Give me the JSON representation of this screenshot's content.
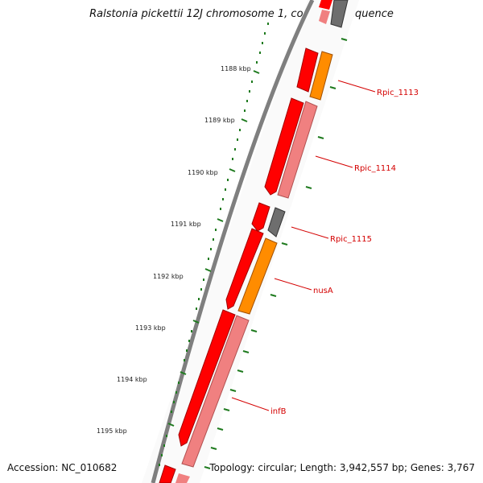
{
  "title": "Ralstonia pickettii 12J chromosome 1, complete sequence",
  "footer": {
    "accession": "Accession: NC_010682",
    "topology": "Topology: circular; Length: 3,942,557 bp; Genes: 3,767"
  },
  "ticks": [
    "1188 kbp",
    "1189 kbp",
    "1190 kbp",
    "1191 kbp",
    "1192 kbp",
    "1193 kbp",
    "1194 kbp",
    "1195 kbp"
  ],
  "genes": [
    "Rpic_1113",
    "Rpic_1114",
    "Rpic_1115",
    "nusA",
    "infB"
  ],
  "colors": {
    "backbone": "#808080",
    "gene_red": "#ff0000",
    "gene_pink": "#f08080",
    "gene_orange": "#ff8c00",
    "gene_gray": "#6e6e6e",
    "tick_green": "#1e7a1e",
    "label_red": "#d40000"
  }
}
